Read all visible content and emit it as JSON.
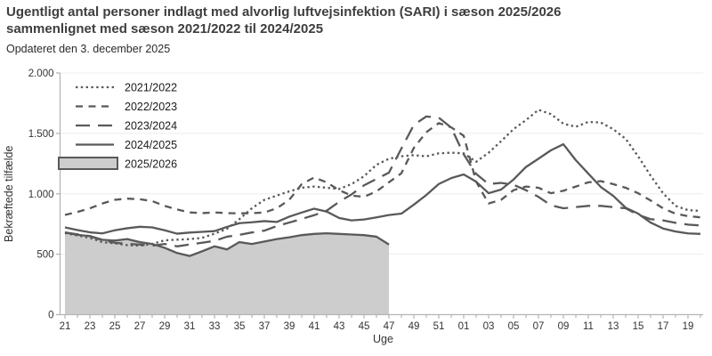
{
  "header": {
    "title_line1": "Ugentligt antal personer indlagt med alvorlig luftvejsinfektion (SARI) i sæson 2025/2026",
    "title_line2": "sammenlignet med sæson 2021/2022 til 2024/2025",
    "subtitle": "Opdateret den 3. december 2025"
  },
  "chart_data": {
    "type": "line",
    "title": "Ugentligt antal personer indlagt med alvorlig luftvejsinfektion (SARI) i sæson 2025/2026 sammenlignet med sæson 2021/2022 til 2024/2025",
    "subtitle": "Opdateret den 3. december 2025",
    "xlabel": "Uge",
    "ylabel": "Bekræftede tilfælde",
    "ylim": [
      0,
      2000
    ],
    "grid": true,
    "legend_position": "top-left",
    "y_ticks": {
      "values": [
        0,
        500,
        1000,
        1500,
        2000
      ],
      "labels": [
        "0",
        "500",
        "1.000",
        "1.500",
        "2.000"
      ]
    },
    "weeks": [
      "21",
      "22",
      "23",
      "24",
      "25",
      "26",
      "27",
      "28",
      "29",
      "30",
      "31",
      "32",
      "33",
      "34",
      "35",
      "36",
      "37",
      "38",
      "39",
      "40",
      "41",
      "42",
      "43",
      "44",
      "45",
      "46",
      "47",
      "48",
      "49",
      "50",
      "51",
      "52",
      "01",
      "02",
      "03",
      "04",
      "05",
      "06",
      "07",
      "08",
      "09",
      "10",
      "11",
      "12",
      "13",
      "14",
      "15",
      "16",
      "17",
      "18",
      "19",
      "20"
    ],
    "x_tick_labels": [
      "21",
      "23",
      "25",
      "27",
      "29",
      "31",
      "33",
      "35",
      "37",
      "39",
      "41",
      "43",
      "45",
      "47",
      "49",
      "51",
      "01",
      "03",
      "05",
      "07",
      "09",
      "11",
      "13",
      "15",
      "17",
      "19"
    ],
    "series": [
      {
        "name": "2021/2022",
        "style": "dotted",
        "values": [
          675,
          655,
          635,
          600,
          590,
          575,
          570,
          585,
          615,
          620,
          625,
          635,
          670,
          710,
          790,
          880,
          950,
          985,
          1020,
          1050,
          1060,
          1050,
          1040,
          1080,
          1145,
          1240,
          1290,
          1310,
          1320,
          1310,
          1335,
          1340,
          1335,
          1265,
          1340,
          1435,
          1535,
          1610,
          1695,
          1660,
          1580,
          1555,
          1595,
          1590,
          1535,
          1455,
          1310,
          1150,
          1005,
          900,
          865,
          858
        ]
      },
      {
        "name": "2022/2023",
        "style": "dash",
        "values": [
          825,
          850,
          880,
          920,
          950,
          960,
          955,
          940,
          900,
          870,
          846,
          840,
          846,
          840,
          838,
          840,
          845,
          880,
          950,
          1080,
          1135,
          1095,
          1030,
          985,
          975,
          1020,
          1095,
          1170,
          1380,
          1510,
          1585,
          1550,
          1480,
          1100,
          920,
          950,
          1030,
          1060,
          1050,
          1005,
          1025,
          1060,
          1095,
          1105,
          1080,
          1050,
          1005,
          945,
          880,
          835,
          815,
          805
        ]
      },
      {
        "name": "2023/2024",
        "style": "longdash",
        "values": [
          680,
          665,
          650,
          615,
          595,
          585,
          580,
          570,
          585,
          565,
          580,
          595,
          610,
          645,
          660,
          680,
          695,
          733,
          762,
          792,
          823,
          860,
          934,
          995,
          1070,
          1123,
          1175,
          1375,
          1570,
          1640,
          1630,
          1548,
          1327,
          1165,
          1081,
          1090,
          1075,
          1030,
          975,
          905,
          880,
          890,
          900,
          900,
          890,
          880,
          825,
          790,
          780,
          760,
          745,
          738
        ]
      },
      {
        "name": "2024/2025",
        "style": "solid",
        "values": [
          722,
          700,
          681,
          672,
          698,
          715,
          727,
          722,
          698,
          670,
          679,
          685,
          691,
          726,
          757,
          764,
          774,
          767,
          811,
          845,
          877,
          853,
          800,
          780,
          787,
          805,
          824,
          836,
          910,
          990,
          1081,
          1130,
          1160,
          1100,
          1005,
          1035,
          1118,
          1222,
          1290,
          1360,
          1410,
          1278,
          1167,
          1057,
          983,
          885,
          836,
          762,
          713,
          688,
          672,
          668
        ]
      },
      {
        "name": "2025/2026",
        "style": "area",
        "values": [
          680,
          660,
          650,
          620,
          613,
          625,
          600,
          585,
          553,
          510,
          485,
          524,
          565,
          540,
          600,
          585,
          605,
          625,
          640,
          658,
          668,
          673,
          668,
          663,
          658,
          645,
          580
        ]
      }
    ],
    "colors": {
      "line": "#595959",
      "area_fill": "#cdcdcd",
      "grid": "#ececec",
      "axis": "#b5b5b5",
      "tick_label": "#333333",
      "title": "#3e3e3e"
    }
  }
}
